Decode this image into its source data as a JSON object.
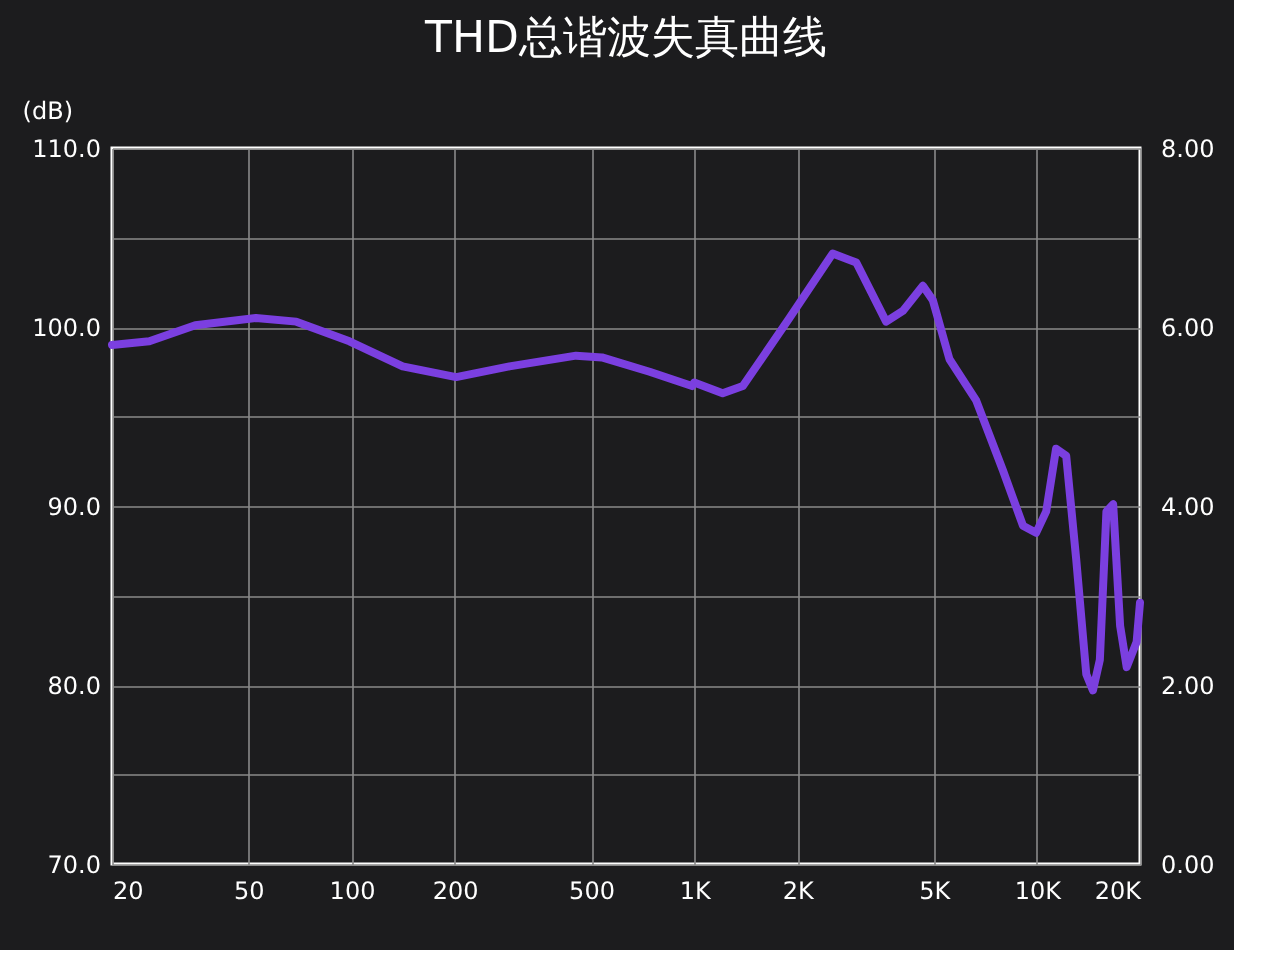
{
  "chart_data": {
    "type": "line",
    "title": "THD总谐波失真曲线",
    "ylabel": "(dB)",
    "x": [
      20,
      25.7,
      35,
      52.6,
      69,
      98.6,
      141,
      202,
      289,
      452,
      538,
      741,
      986,
      1000,
      1211,
      1387,
      1897,
      2535,
      2972,
      3632,
      4064,
      4650,
      4970,
      5560,
      6650,
      7960,
      9110,
      9950,
      10650,
      11380,
      12180,
      13030,
      13940,
      14580,
      15270,
      15960,
      16700,
      17500,
      18290,
      19550,
      20000
    ],
    "series": [
      {
        "color": "#7b3fe0",
        "values": [
          99.0,
          99.2,
          100.1,
          100.5,
          100.3,
          99.2,
          97.8,
          97.2,
          97.8,
          98.4,
          98.3,
          97.5,
          96.7,
          96.9,
          96.3,
          96.7,
          100.5,
          104.1,
          103.6,
          100.3,
          100.9,
          102.3,
          101.5,
          98.2,
          95.9,
          92.0,
          88.9,
          88.5,
          89.7,
          93.2,
          92.8,
          87.0,
          80.6,
          79.7,
          81.4,
          89.7,
          90.1,
          83.3,
          81.0,
          82.4,
          84.6
        ]
      }
    ],
    "log": "x",
    "grid": true,
    "line_style": "solid",
    "xlim": [
      20,
      20000
    ],
    "xticks": [
      20,
      50,
      100,
      200,
      500,
      {
        "value": 1000,
        "label": "1K"
      },
      {
        "value": 2000,
        "label": "2K"
      },
      {
        "value": 5000,
        "label": "5K"
      },
      {
        "value": 10000,
        "label": "10K"
      },
      {
        "value": 20000,
        "label": "20K"
      }
    ],
    "ylim": [
      70,
      110
    ],
    "yticks": [
      {
        "value": 70,
        "label": "70.0"
      },
      {
        "value": 75,
        "label": null
      },
      {
        "value": 80,
        "label": "80.0"
      },
      {
        "value": 85,
        "label": null
      },
      {
        "value": 90,
        "label": "90.0"
      },
      {
        "value": 95,
        "label": null
      },
      {
        "value": 100,
        "label": "100.0"
      },
      {
        "value": 105,
        "label": null
      },
      {
        "value": 110,
        "label": "110.0"
      }
    ],
    "y2lim": [
      0,
      8
    ],
    "y2ticks": [
      {
        "value": 0,
        "label": "0.00"
      },
      {
        "value": 2,
        "label": "2.00"
      },
      {
        "value": 4,
        "label": "4.00"
      },
      {
        "value": 6,
        "label": "6.00"
      },
      {
        "value": 8,
        "label": "8.00"
      }
    ]
  }
}
